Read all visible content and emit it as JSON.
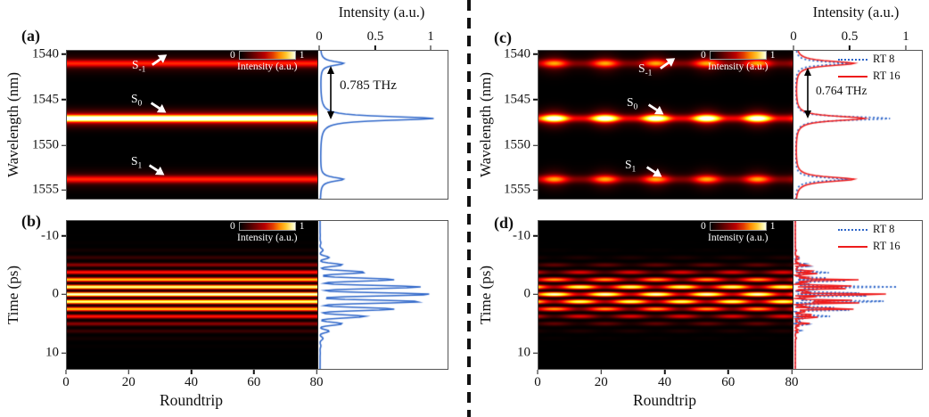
{
  "figure": {
    "colors": {
      "profile_blue": "#2e66c9",
      "profile_red": "#ee1c1c",
      "divider": "#111111"
    },
    "panels": {
      "a": {
        "label": "(a)",
        "ylabel": "Wavelength (nm)",
        "yticks": [
          "1540",
          "1545",
          "1550",
          "1555"
        ],
        "top_title": "Intensity (a.u.)",
        "top_ticks": [
          "0",
          "0.5",
          "1"
        ],
        "colorbar": {
          "min": "0",
          "max": "1",
          "label": "Intensity (a.u.)"
        },
        "band_labels": [
          {
            "base": "S",
            "sub": "-1"
          },
          {
            "base": "S",
            "sub": "0"
          },
          {
            "base": "S",
            "sub": "1"
          }
        ],
        "annotation": "0.785 THz"
      },
      "b": {
        "label": "(b)",
        "ylabel": "Time (ps)",
        "yticks": [
          "-10",
          "0",
          "10"
        ],
        "xticks": [
          "0",
          "20",
          "40",
          "60",
          "80"
        ],
        "xlabel": "Roundtrip",
        "colorbar": {
          "min": "0",
          "max": "1",
          "label": "Intensity (a.u.)"
        }
      },
      "c": {
        "label": "(c)",
        "ylabel": "Wavelength (nm)",
        "yticks": [
          "1540",
          "1545",
          "1550",
          "1555"
        ],
        "top_title": "Intensity (a.u.)",
        "top_ticks": [
          "0",
          "0.5",
          "1"
        ],
        "colorbar": {
          "min": "0",
          "max": "1",
          "label": "Intensity (a.u.)"
        },
        "band_labels": [
          {
            "base": "S",
            "sub": "-1"
          },
          {
            "base": "S",
            "sub": "0"
          },
          {
            "base": "S",
            "sub": "1"
          }
        ],
        "annotation": "0.764 THz",
        "legend": [
          {
            "label": "RT 8"
          },
          {
            "label": "RT 16"
          }
        ]
      },
      "d": {
        "label": "(d)",
        "ylabel": "Time (ps)",
        "yticks": [
          "-10",
          "0",
          "10"
        ],
        "xticks": [
          "0",
          "20",
          "40",
          "60",
          "80"
        ],
        "xlabel": "Roundtrip",
        "colorbar": {
          "min": "0",
          "max": "1",
          "label": "Intensity (a.u.)"
        },
        "legend": [
          {
            "label": "RT 8"
          },
          {
            "label": "RT 16"
          }
        ]
      }
    }
  },
  "chart_data": [
    {
      "id": "a",
      "type": "heatmap",
      "subtype": "spectrum",
      "panel": "(a)",
      "xlabel": "Roundtrip",
      "xlim": [
        0,
        80
      ],
      "ylabel": "Wavelength (nm)",
      "ylim": [
        1539.6,
        1556.0
      ],
      "yticks": [
        1540,
        1545,
        1550,
        1555
      ],
      "bands": [
        {
          "name": "S-1",
          "center_nm": 1541.0,
          "amplitude": 0.34,
          "sigma_nm": 0.38
        },
        {
          "name": "S0",
          "center_nm": 1547.1,
          "amplitude": 1.0,
          "sigma_nm": 0.34
        },
        {
          "name": "S1",
          "center_nm": 1553.85,
          "amplitude": 0.34,
          "sigma_nm": 0.38
        }
      ],
      "modulation": null,
      "annotation": {
        "text": "0.785 THz",
        "between": [
          "S-1",
          "S0"
        ]
      },
      "colorbar": {
        "label": "Intensity (a.u.)",
        "range": [
          0,
          1
        ]
      },
      "profile": {
        "axis_title": "Intensity (a.u.)",
        "ticks": [
          0,
          0.5,
          1
        ],
        "series": [
          {
            "name": "spectrum",
            "color": "#2e66c9",
            "style": "solid",
            "gamma_nm": 0.26,
            "peaks": [
              0.21,
              1.02,
              0.21
            ]
          }
        ]
      }
    },
    {
      "id": "b",
      "type": "heatmap",
      "subtype": "temporal",
      "panel": "(b)",
      "xlabel": "Roundtrip",
      "xlim": [
        0,
        80
      ],
      "xticks": [
        0,
        20,
        40,
        60,
        80
      ],
      "ylabel": "Time (ps)",
      "ylim": [
        -12.6,
        12.8
      ],
      "yticks": [
        -10,
        0,
        10
      ],
      "pulse": {
        "period_ps": 1.274,
        "envelope_sigma_ps": 4.0,
        "sharpness": 1.3
      },
      "modulation": null,
      "colorbar": {
        "label": "Intensity (a.u.)",
        "range": [
          0,
          1
        ]
      },
      "profile": {
        "series": [
          {
            "name": "pulse train",
            "color": "#2e66c9",
            "style": "solid"
          }
        ]
      }
    },
    {
      "id": "c",
      "type": "heatmap",
      "subtype": "spectrum",
      "panel": "(c)",
      "xlabel": "Roundtrip",
      "xlim": [
        0,
        80
      ],
      "ylabel": "Wavelength (nm)",
      "ylim": [
        1539.6,
        1556.0
      ],
      "yticks": [
        1540,
        1545,
        1550,
        1555
      ],
      "bands": [
        {
          "name": "S-1",
          "center_nm": 1541.0,
          "amplitude": 0.5,
          "sigma_nm": 0.42
        },
        {
          "name": "S0",
          "center_nm": 1547.1,
          "amplitude": 0.95,
          "sigma_nm": 0.38
        },
        {
          "name": "S1",
          "center_nm": 1553.85,
          "amplitude": 0.5,
          "sigma_nm": 0.42
        }
      ],
      "modulation": {
        "period_rt": 16,
        "phase_rt": 5,
        "floor": 0.3,
        "power": 1.6
      },
      "annotation": {
        "text": "0.764 THz",
        "between": [
          "S-1",
          "S0"
        ]
      },
      "colorbar": {
        "label": "Intensity (a.u.)",
        "range": [
          0,
          1
        ]
      },
      "profile": {
        "axis_title": "Intensity (a.u.)",
        "ticks": [
          0,
          0.5,
          1
        ],
        "series": [
          {
            "name": "RT 8",
            "color": "#2e66c9",
            "style": "dotted",
            "gamma_nm": 0.22,
            "peaks": [
              0.46,
              0.85,
              0.46
            ]
          },
          {
            "name": "RT 16",
            "color": "#ee1c1c",
            "style": "solid",
            "gamma_nm": 0.3,
            "peaks": [
              0.53,
              0.62,
              0.53
            ]
          }
        ]
      }
    },
    {
      "id": "d",
      "type": "heatmap",
      "subtype": "temporal",
      "panel": "(d)",
      "xlabel": "Roundtrip",
      "xlim": [
        0,
        80
      ],
      "xticks": [
        0,
        20,
        40,
        60,
        80
      ],
      "ylabel": "Time (ps)",
      "ylim": [
        -12.6,
        12.8
      ],
      "yticks": [
        -10,
        0,
        10
      ],
      "pulse": {
        "period_ps": 1.274,
        "envelope_sigma_ps": 3.6,
        "sharpness": 1.1
      },
      "modulation": {
        "period_rt": 16,
        "phase_rt": 5,
        "floor": 0.3,
        "checkerboard": true
      },
      "colorbar": {
        "label": "Intensity (a.u.)",
        "range": [
          0,
          1
        ]
      },
      "profile": {
        "series": [
          {
            "name": "RT 8",
            "color": "#2e66c9",
            "style": "dotted",
            "scale": 1.06,
            "fine_period_ps": 0.5,
            "fine_phase_ps": 0.22
          },
          {
            "name": "RT 16",
            "color": "#ee1c1c",
            "style": "solid",
            "scale": 0.95,
            "fine_period_ps": 0.5,
            "fine_phase_ps": 0.0
          }
        ]
      }
    }
  ]
}
